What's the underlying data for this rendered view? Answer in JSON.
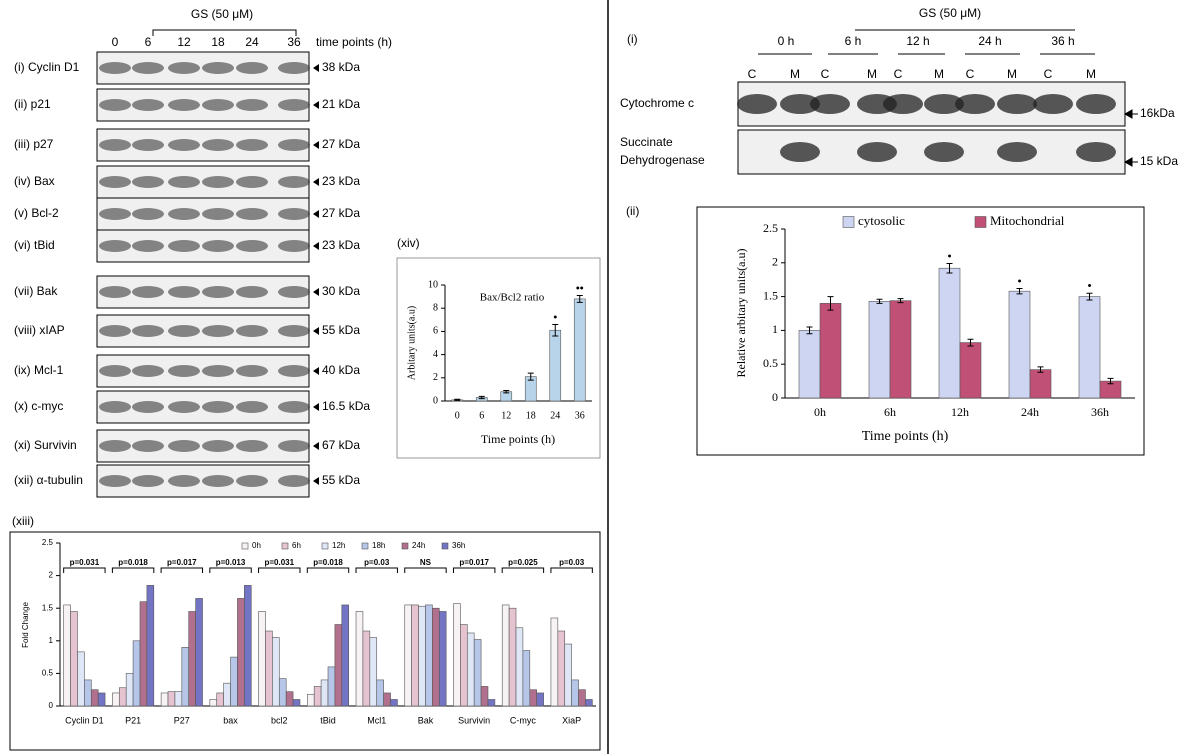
{
  "left_blot": {
    "treatment": "GS (50 μM)",
    "time_points": [
      "0",
      "6",
      "12",
      "18",
      "24",
      "36"
    ],
    "time_label": "time points (h)",
    "rows": [
      {
        "label": "(i) Cyclin D1",
        "size": "38 kDa"
      },
      {
        "label": "(ii) p21",
        "size": "21 kDa"
      },
      {
        "label": "(iii) p27",
        "size": "27 kDa"
      },
      {
        "label": "(iv) Bax",
        "size": "23 kDa"
      },
      {
        "label": "(v) Bcl-2",
        "size": "27 kDa"
      },
      {
        "label": "(vi) tBid",
        "size": "23 kDa"
      },
      {
        "label": "(vii) Bak",
        "size": "30 kDa"
      },
      {
        "label": "(viii) xIAP",
        "size": "55 kDa"
      },
      {
        "label": "(ix) Mcl-1",
        "size": "40 kDa"
      },
      {
        "label": "(x) c-myc",
        "size": "16.5 kDa"
      },
      {
        "label": "(xi) Survivin",
        "size": "67 kDa"
      },
      {
        "label": "(xii) α-tubulin",
        "size": "55 kDa"
      }
    ]
  },
  "right_blot": {
    "panel": "(i)",
    "treatment": "GS (50 μM)",
    "times": [
      "0 h",
      "6 h",
      "12 h",
      "24 h",
      "36 h"
    ],
    "fractions": [
      "C",
      "M",
      "C",
      "M",
      "C",
      "M",
      "C",
      "M",
      "C",
      "M"
    ],
    "rows": [
      {
        "label": [
          "Cytochrome c"
        ],
        "size": "16kDa"
      },
      {
        "label": [
          "Succinate",
          "Dehydrogenase"
        ],
        "size": "15 kDa"
      }
    ]
  },
  "chart_data": [
    {
      "type": "bar",
      "panel": "(xiv)",
      "title": "Bax/Bcl2 ratio",
      "x_label": "Time points (h)",
      "y_label": "Arbitary units(a.u)",
      "categories": [
        "0",
        "6",
        "12",
        "18",
        "24",
        "36"
      ],
      "series": [
        {
          "color": "#b8d4ea",
          "values": [
            0.1,
            0.3,
            0.8,
            2.1,
            6.1,
            8.8
          ],
          "errors": [
            0.05,
            0.1,
            0.1,
            0.3,
            0.5,
            0.3
          ],
          "marks": [
            null,
            null,
            null,
            null,
            "•",
            "••"
          ]
        }
      ],
      "ylim": [
        0,
        10
      ],
      "yticks": [
        0,
        2,
        4,
        6,
        8,
        10
      ],
      "grid": false
    },
    {
      "type": "bar",
      "panel": "(xiii)",
      "y_label": "Fold Change",
      "categories": [
        "Cyclin D1",
        "P21",
        "P27",
        "bax",
        "bcl2",
        "tBid",
        "Mcl1",
        "Bak",
        "Survivin",
        "C-myc",
        "XiaP"
      ],
      "group_labels": [
        "p=0.031",
        "p=0.018",
        "p=0.017",
        "p=0.013",
        "p=0.031",
        "p=0.018",
        "p=0.03",
        "NS",
        "p=0.017",
        "p=0.025",
        "p=0.03"
      ],
      "series": [
        {
          "name": "0h",
          "color": "#f7f2f4",
          "values": [
            1.55,
            0.2,
            0.2,
            0.1,
            1.45,
            0.18,
            1.45,
            1.55,
            1.57,
            1.55,
            1.35
          ]
        },
        {
          "name": "6h",
          "color": "#e6c3d0",
          "values": [
            1.45,
            0.28,
            0.22,
            0.2,
            1.15,
            0.3,
            1.15,
            1.55,
            1.25,
            1.5,
            1.15
          ]
        },
        {
          "name": "12h",
          "color": "#dfe6f6",
          "values": [
            0.83,
            0.5,
            0.22,
            0.35,
            1.05,
            0.4,
            1.05,
            1.53,
            1.12,
            1.2,
            0.95
          ]
        },
        {
          "name": "18h",
          "color": "#b6c6e8",
          "values": [
            0.4,
            1.0,
            0.9,
            0.75,
            0.42,
            0.6,
            0.4,
            1.55,
            1.02,
            0.85,
            0.4
          ]
        },
        {
          "name": "24h",
          "color": "#b0708e",
          "values": [
            0.25,
            1.6,
            1.45,
            1.65,
            0.22,
            1.25,
            0.2,
            1.5,
            0.3,
            0.25,
            0.25
          ]
        },
        {
          "name": "36h",
          "color": "#7474c4",
          "values": [
            0.2,
            1.85,
            1.65,
            1.85,
            0.1,
            1.55,
            0.1,
            1.45,
            0.1,
            0.2,
            0.1
          ]
        }
      ],
      "ylim": [
        0,
        2.5
      ],
      "yticks": [
        0,
        0.5,
        1,
        1.5,
        2,
        2.5
      ],
      "grid": false
    },
    {
      "type": "bar",
      "panel": "(ii)",
      "x_label": "Time points (h)",
      "y_label": "Relative arbitary units(a.u)",
      "categories": [
        "0h",
        "6h",
        "12h",
        "24h",
        "36h"
      ],
      "series": [
        {
          "name": "cytosolic",
          "color": "#cdd5f2",
          "values": [
            1.0,
            1.43,
            1.92,
            1.58,
            1.5
          ],
          "errors": [
            0.05,
            0.03,
            0.07,
            0.04,
            0.05
          ],
          "marks": [
            null,
            null,
            "•",
            "•",
            "•"
          ]
        },
        {
          "name": "Mitochondrial",
          "color": "#c05075",
          "values": [
            1.4,
            1.44,
            0.82,
            0.42,
            0.25
          ],
          "errors": [
            0.1,
            0.03,
            0.05,
            0.04,
            0.04
          ]
        }
      ],
      "ylim": [
        0,
        2.5
      ],
      "yticks": [
        0,
        0.5,
        1,
        1.5,
        2,
        2.5
      ],
      "grid": false
    }
  ]
}
